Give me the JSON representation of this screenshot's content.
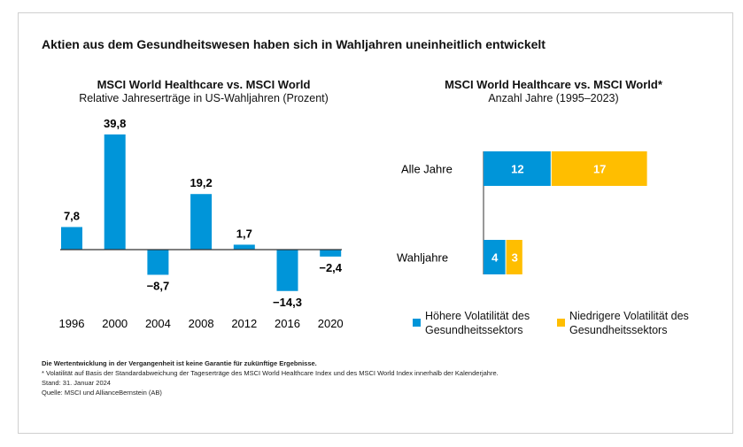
{
  "title": "Aktien aus dem Gesundheitswesen haben sich in Wahljahren uneinheitlich entwickelt",
  "colors": {
    "blue": "#0095D9",
    "yellow": "#FFBE00",
    "axis": "#777777"
  },
  "chart_data": [
    {
      "type": "bar",
      "title": "MSCI World Healthcare vs. MSCI World",
      "subtitle": "Relative Jahreserträge in US-Wahljahren (Prozent)",
      "categories": [
        "1996",
        "2000",
        "2004",
        "2008",
        "2012",
        "2016",
        "2020"
      ],
      "values": [
        7.8,
        39.8,
        -8.7,
        19.2,
        1.7,
        -14.3,
        -2.4
      ],
      "labels": [
        "7,8",
        "39,8",
        "−8,7",
        "19,2",
        "1,7",
        "−14,3",
        "−2,4"
      ],
      "color": "#0095D9",
      "grid": false
    },
    {
      "type": "bar",
      "orientation": "horizontal",
      "stacked": true,
      "title": "MSCI World Healthcare vs. MSCI World*",
      "subtitle": "Anzahl Jahre (1995–2023)",
      "categories": [
        "Alle Jahre",
        "Wahljahre"
      ],
      "series": [
        {
          "name": "Höhere Volatilität des Gesundheitssektors",
          "values": [
            12,
            4
          ],
          "color": "#0095D9"
        },
        {
          "name": "Niedrigere Volatilität des Gesundheitssektors",
          "values": [
            17,
            3
          ],
          "color": "#FFBE00"
        }
      ],
      "legend": "bottom"
    }
  ],
  "footnotes": {
    "disclaimer": "Die Wertentwicklung in der Vergangenheit ist keine Garantie für zukünftige Ergebnisse.",
    "note": "* Volatilität auf Basis der Standardabweichung der Tageserträge des MSCI World Healthcare Index und des MSCI World Index innerhalb der Kalenderjahre.",
    "date": "Stand: 31. Januar 2024",
    "source": "Quelle: MSCI und AllianceBernstein (AB)"
  }
}
